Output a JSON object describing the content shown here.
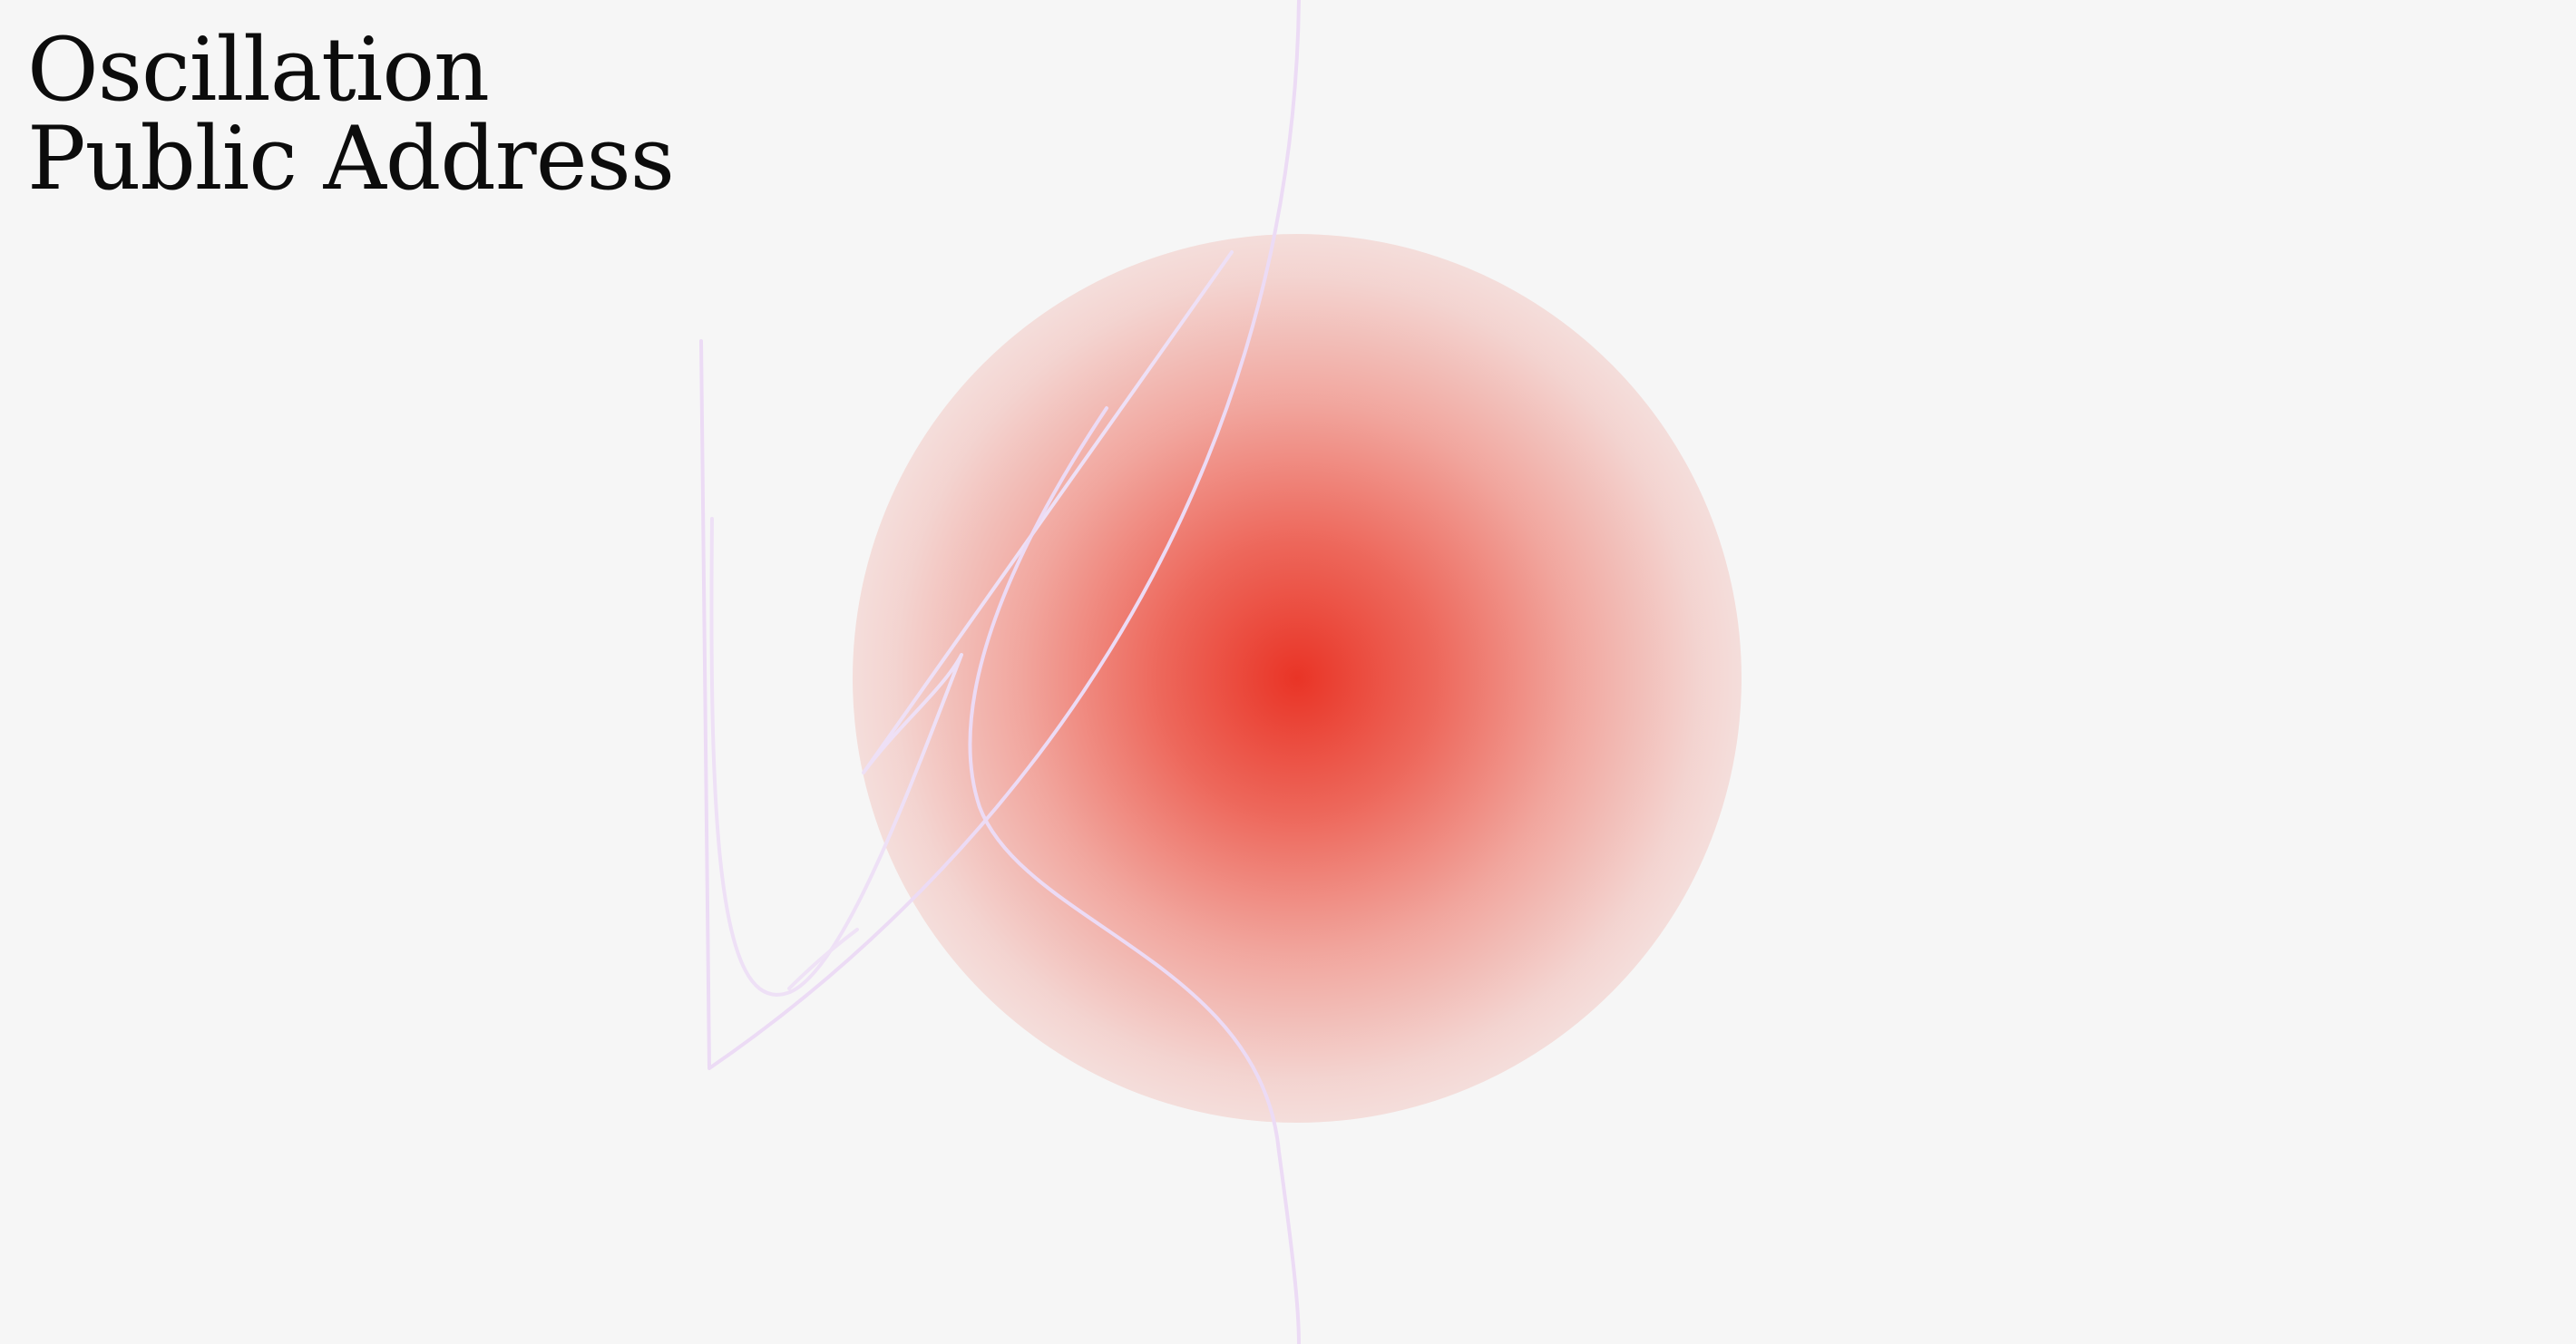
{
  "title": {
    "line1": "Oscillation",
    "line2": "Public Address"
  },
  "colors": {
    "background": "#f6f6f6",
    "title_text": "#0c0c0c",
    "glow_core": "#e93426",
    "line_stroke": "#eadcf4"
  }
}
